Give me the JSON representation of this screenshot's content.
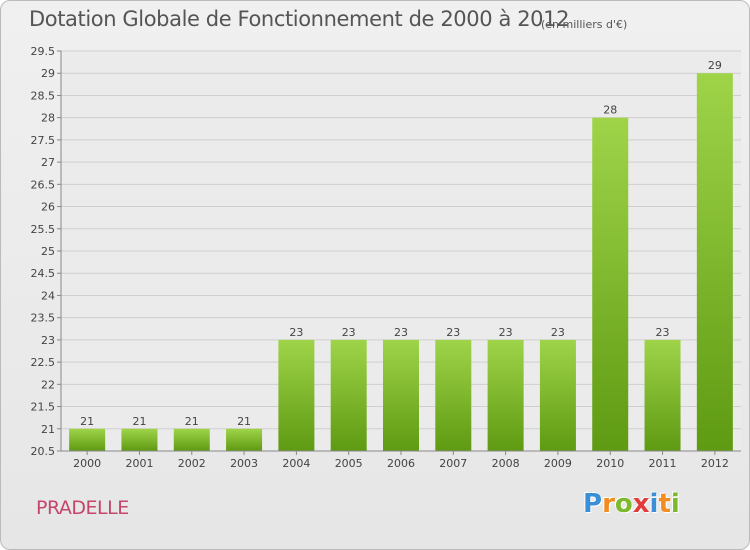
{
  "header": {
    "title": "Dotation Globale de Fonctionnement de 2000 à 2012",
    "unit": "(en milliers d'€)"
  },
  "footer": {
    "commune": "PRADELLE",
    "logo_letters": [
      "P",
      "r",
      "o",
      "x",
      "i",
      "t",
      "i"
    ],
    "logo_colors": [
      "#3a8fd6",
      "#f28c1e",
      "#7cba2b",
      "#e23b3b",
      "#3a8fd6",
      "#f28c1e",
      "#7cba2b"
    ]
  },
  "colors": {
    "bar_light": "#9fd449",
    "bar_dark": "#5e9a12",
    "grid": "#cfcfcf",
    "axis": "#888888",
    "text": "#444444"
  },
  "chart_data": {
    "type": "bar",
    "title": "Dotation Globale de Fonctionnement de 2000 à 2012",
    "xlabel": "",
    "ylabel": "",
    "categories": [
      "2000",
      "2001",
      "2002",
      "2003",
      "2004",
      "2005",
      "2006",
      "2007",
      "2008",
      "2009",
      "2010",
      "2011",
      "2012"
    ],
    "values": [
      21,
      21,
      21,
      21,
      23,
      23,
      23,
      23,
      23,
      23,
      28,
      23,
      29
    ],
    "data_labels": [
      "21",
      "21",
      "21",
      "21",
      "23",
      "23",
      "23",
      "23",
      "23",
      "23",
      "28",
      "23",
      "29"
    ],
    "ylim": [
      20.5,
      29.5
    ],
    "yticks": [
      "20.5",
      "21",
      "21.5",
      "22",
      "22.5",
      "23",
      "23.5",
      "24",
      "24.5",
      "25",
      "25.5",
      "26",
      "26.5",
      "27",
      "27.5",
      "28",
      "28.5",
      "29",
      "29.5"
    ],
    "grid": true,
    "legend": "none"
  }
}
